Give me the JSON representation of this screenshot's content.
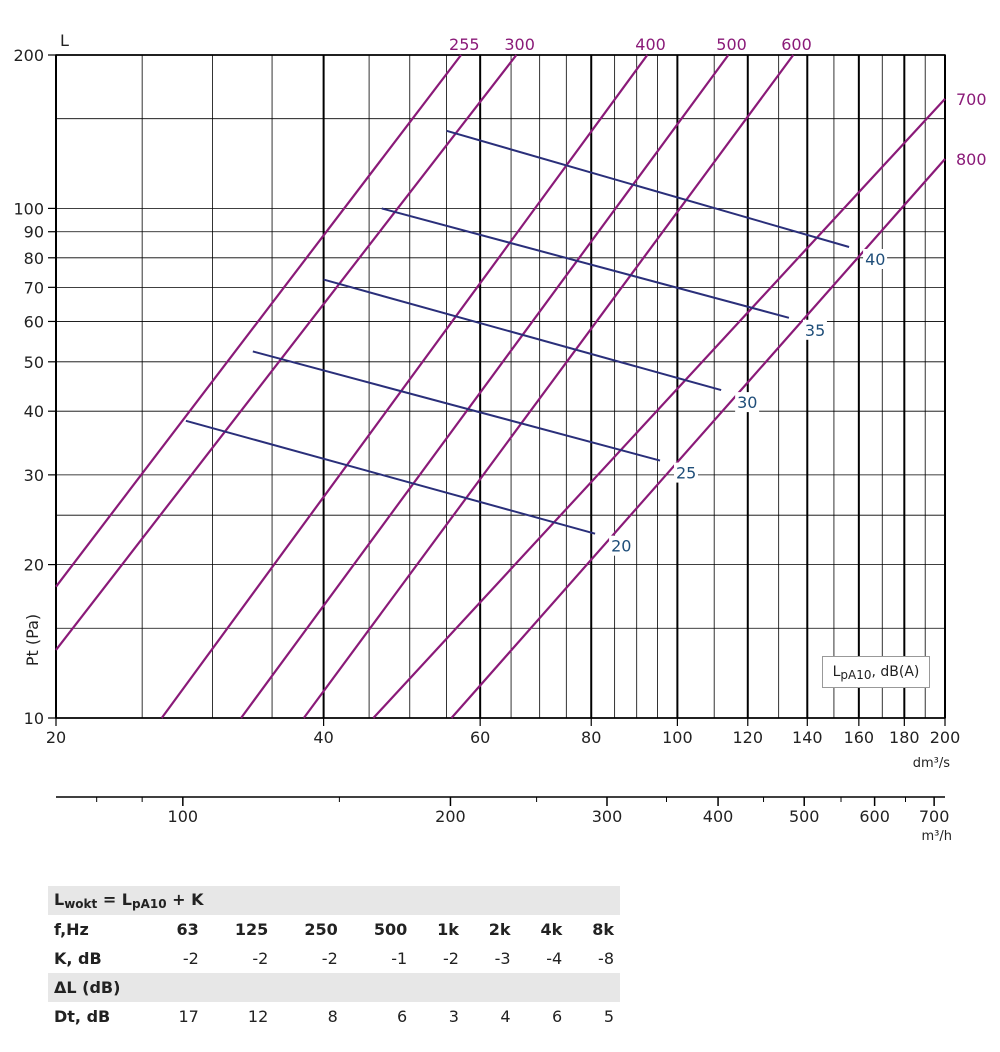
{
  "chart_data": {
    "type": "line",
    "y_axis": {
      "label": "Pt (Pa)",
      "top_label": "L",
      "scale": "log",
      "range": [
        10,
        200
      ],
      "ticks": [
        "10",
        "20",
        "30",
        "40",
        "50",
        "60",
        "70",
        "80",
        "90",
        "100",
        "200"
      ]
    },
    "x_axis": {
      "unit": "dm³/s",
      "scale": "log",
      "range": [
        20,
        200
      ],
      "ticks": [
        "20",
        "40",
        "60",
        "80",
        "100",
        "120",
        "140",
        "160",
        "180",
        "200"
      ]
    },
    "x2_axis": {
      "unit": "m³/h",
      "scale": "log",
      "ticks": [
        "100",
        "200",
        "300",
        "400",
        "500",
        "600",
        "700"
      ]
    },
    "legend_label": "L",
    "legend_sub": "pA10",
    "legend_suffix": ", dB(A)",
    "duct_series": [
      {
        "name": "255",
        "points": [
          [
            20,
            18.1
          ],
          [
            57.1,
            200
          ]
        ]
      },
      {
        "name": "300",
        "points": [
          [
            20,
            13.6
          ],
          [
            65.9,
            200
          ]
        ]
      },
      {
        "name": "400",
        "points": [
          [
            26.3,
            10
          ],
          [
            92.5,
            200
          ]
        ]
      },
      {
        "name": "500",
        "points": [
          [
            32.3,
            10
          ],
          [
            114.1,
            200
          ]
        ]
      },
      {
        "name": "600",
        "points": [
          [
            38.0,
            10
          ],
          [
            135.0,
            200
          ]
        ]
      },
      {
        "name": "700",
        "points": [
          [
            45.5,
            10
          ],
          [
            200,
            164
          ]
        ]
      },
      {
        "name": "800",
        "points": [
          [
            55.7,
            10
          ],
          [
            200,
            125
          ]
        ]
      }
    ],
    "noise_series": [
      {
        "name": "20",
        "points": [
          [
            28.0,
            38.3
          ],
          [
            80.8,
            23.0
          ]
        ]
      },
      {
        "name": "25",
        "points": [
          [
            33.3,
            52.4
          ],
          [
            95.6,
            32.0
          ]
        ]
      },
      {
        "name": "30",
        "points": [
          [
            40.0,
            72.5
          ],
          [
            112.0,
            44.0
          ]
        ]
      },
      {
        "name": "35",
        "points": [
          [
            46.5,
            100.0
          ],
          [
            133.5,
            61.0
          ]
        ]
      },
      {
        "name": "40",
        "points": [
          [
            55.0,
            142.0
          ],
          [
            156.0,
            84.0
          ]
        ]
      }
    ]
  },
  "table": {
    "formula_main": "L",
    "formula_sub1": "wokt",
    "formula_mid": " = L",
    "formula_sub2": "pA10",
    "formula_end": " + K",
    "freq_label": "f,Hz",
    "freqs": [
      "63",
      "125",
      "250",
      "500",
      "1k",
      "2k",
      "4k",
      "8k"
    ],
    "k_label": "K, dB",
    "k_values": [
      "-2",
      "-2",
      "-2",
      "-1",
      "-2",
      "-3",
      "-4",
      "-8"
    ],
    "dl_label": "ΔL (dB)",
    "dt_label": "Dt, dB",
    "dt_values": [
      "17",
      "12",
      "8",
      "6",
      "3",
      "4",
      "6",
      "5"
    ]
  },
  "colors": {
    "duct": "#8a1a78",
    "noise": "#2a2f7a",
    "grid": "#000000"
  }
}
